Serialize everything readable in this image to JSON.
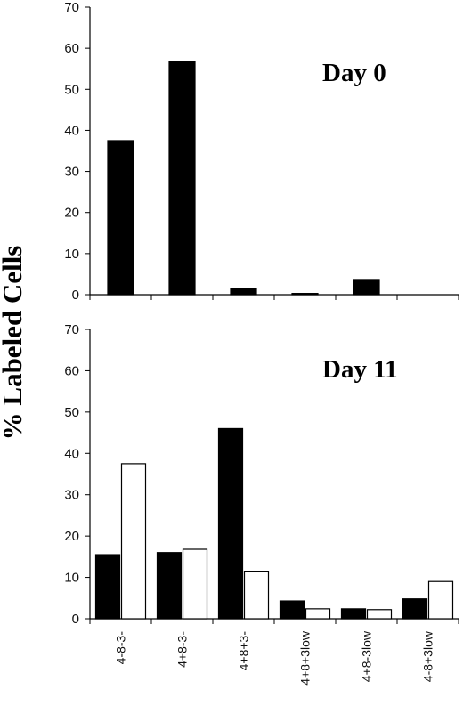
{
  "chart_data": {
    "ylabel": "% Labeled Cells",
    "categories": [
      "4-8-3-",
      "4+8-3-",
      "4+8+3-",
      "4+8+3low",
      "4+8-3low",
      "4-8+3low"
    ],
    "colors": {
      "filled": "#000000",
      "open": "#ffffff"
    },
    "panels": [
      {
        "type": "bar",
        "title": "Day 0",
        "ylim": [
          0,
          70
        ],
        "yticks": [
          0,
          10,
          20,
          30,
          40,
          50,
          60,
          70
        ],
        "series": [
          {
            "values": [
              37.5,
              56.8,
              1.5,
              0.3,
              3.7,
              0
            ]
          }
        ]
      },
      {
        "type": "bar",
        "title": "Day 11",
        "ylim": [
          0,
          70
        ],
        "yticks": [
          0,
          10,
          20,
          30,
          40,
          50,
          60,
          70
        ],
        "series": [
          {
            "values": [
              15.5,
              16.0,
              46.0,
              4.3,
              2.4,
              4.8
            ]
          },
          {
            "values": [
              37.5,
              16.8,
              11.5,
              2.4,
              2.2,
              9.0
            ]
          }
        ]
      }
    ]
  }
}
